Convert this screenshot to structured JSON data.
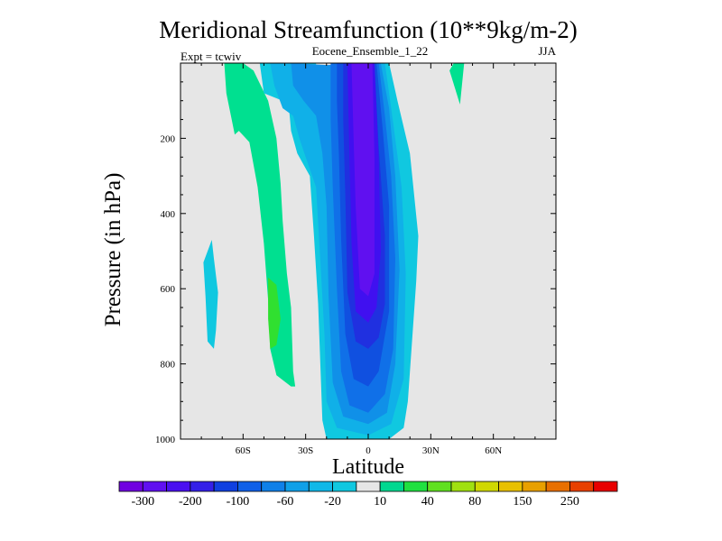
{
  "chart_data": {
    "type": "heatmap",
    "subtype": "filled-contour",
    "title": "Meridional Streamfunction (10**9kg/m-2)",
    "subtitle_center": "Eocene_Ensemble_1_22",
    "subtitle_left": "Expt = tcwiv",
    "subtitle_right": "JJA",
    "xlabel": "Latitude",
    "ylabel": "Pressure (in hPa)",
    "xlim": [
      -90,
      90
    ],
    "ylim": [
      1000,
      0
    ],
    "x_ticks": [
      {
        "value": -60,
        "label": "60S"
      },
      {
        "value": -30,
        "label": "30S"
      },
      {
        "value": 0,
        "label": "0"
      },
      {
        "value": 30,
        "label": "30N"
      },
      {
        "value": 60,
        "label": "60N"
      }
    ],
    "y_ticks": [
      {
        "value": 200,
        "label": "200"
      },
      {
        "value": 400,
        "label": "400"
      },
      {
        "value": 600,
        "label": "600"
      },
      {
        "value": 800,
        "label": "800"
      },
      {
        "value": 1000,
        "label": "1000"
      }
    ],
    "background_color": "#e6e6e6",
    "colorbar": {
      "levels": [
        -350,
        -300,
        -250,
        -200,
        -150,
        -100,
        -80,
        -60,
        -40,
        -20,
        -10,
        10,
        20,
        40,
        60,
        80,
        100,
        150,
        200,
        250,
        300,
        350
      ],
      "labels": [
        {
          "level": -300,
          "text": "-300"
        },
        {
          "level": -200,
          "text": "-200"
        },
        {
          "level": -100,
          "text": "-100"
        },
        {
          "level": -60,
          "text": "-60"
        },
        {
          "level": -20,
          "text": "-20"
        },
        {
          "level": 10,
          "text": "10"
        },
        {
          "level": 40,
          "text": "40"
        },
        {
          "level": 80,
          "text": "80"
        },
        {
          "level": 150,
          "text": "150"
        },
        {
          "level": 250,
          "text": "250"
        }
      ],
      "colors": [
        "#7000e0",
        "#6010f0",
        "#4a10f0",
        "#3420e8",
        "#1040e0",
        "#1060e8",
        "#1080e8",
        "#10a0e8",
        "#10b8e8",
        "#10c8e0",
        "#e6e6e6",
        "#00d890",
        "#20e040",
        "#60e020",
        "#a0e010",
        "#d0d800",
        "#e8c000",
        "#e8a000",
        "#e87000",
        "#e84000",
        "#e80000"
      ]
    },
    "contours": [
      {
        "level": 10,
        "color": "#00e090",
        "polygon": [
          [
            -69,
            0
          ],
          [
            -60,
            0
          ],
          [
            -55,
            -20
          ],
          [
            -48,
            -100
          ],
          [
            -44,
            -200
          ],
          [
            -42,
            -320
          ],
          [
            -41,
            -420
          ],
          [
            -39,
            -560
          ],
          [
            -37,
            -650
          ],
          [
            -36,
            -820
          ],
          [
            -35,
            -860
          ],
          [
            -37,
            -860
          ],
          [
            -44,
            -830
          ],
          [
            -47,
            -760
          ],
          [
            -48,
            -630
          ],
          [
            -50,
            -480
          ],
          [
            -53,
            -330
          ],
          [
            -57,
            -210
          ],
          [
            -62,
            -180
          ],
          [
            -64,
            -190
          ],
          [
            -68,
            -80
          ]
        ]
      },
      {
        "level": 40,
        "color": "#30e030",
        "polygon": [
          [
            -48,
            -570
          ],
          [
            -44,
            -590
          ],
          [
            -42,
            -680
          ],
          [
            -44,
            -750
          ],
          [
            -47,
            -760
          ],
          [
            -48,
            -680
          ]
        ]
      },
      {
        "level": 10,
        "color": "#00e090",
        "polygon": [
          [
            39,
            -20
          ],
          [
            41,
            0
          ],
          [
            46,
            0
          ],
          [
            44,
            -110
          ]
        ]
      },
      {
        "level": 10,
        "color": "#00e090",
        "polygon": [
          [
            2,
            -70
          ],
          [
            3,
            -20
          ],
          [
            4,
            -60
          ]
        ]
      },
      {
        "level": -20,
        "color": "#10c8e0",
        "polygon": [
          [
            -52,
            0
          ],
          [
            -25,
            0
          ],
          [
            -25,
            -20
          ],
          [
            -15,
            0
          ],
          [
            10,
            0
          ],
          [
            14,
            -100
          ],
          [
            20,
            -240
          ],
          [
            24,
            -460
          ],
          [
            23,
            -580
          ],
          [
            19,
            -900
          ],
          [
            17,
            -970
          ],
          [
            10,
            -1000
          ],
          [
            -20,
            -1000
          ],
          [
            -22,
            -950
          ],
          [
            -24,
            -640
          ],
          [
            -26,
            -460
          ],
          [
            -28,
            -300
          ],
          [
            -34,
            -240
          ],
          [
            -37,
            -180
          ],
          [
            -38,
            -120
          ],
          [
            -41,
            -100
          ],
          [
            -50,
            -80
          ]
        ]
      },
      {
        "level": -20,
        "color": "#10c8e0",
        "polygon": [
          [
            -79,
            -530
          ],
          [
            -78,
            -620
          ],
          [
            -77,
            -740
          ],
          [
            -74,
            -760
          ],
          [
            -73,
            -710
          ],
          [
            -72,
            -610
          ],
          [
            -74,
            -520
          ],
          [
            -75,
            -470
          ]
        ]
      },
      {
        "level": -40,
        "color": "#10b0e8",
        "polygon": [
          [
            -47,
            0
          ],
          [
            -35,
            0
          ],
          [
            -29,
            -20
          ],
          [
            -25,
            -40
          ],
          [
            -22,
            -10
          ],
          [
            -14,
            -5
          ],
          [
            8,
            0
          ],
          [
            12,
            -160
          ],
          [
            16,
            -330
          ],
          [
            18,
            -560
          ],
          [
            17,
            -840
          ],
          [
            11,
            -960
          ],
          [
            0,
            -990
          ],
          [
            -15,
            -970
          ],
          [
            -20,
            -900
          ],
          [
            -21,
            -720
          ],
          [
            -23,
            -520
          ],
          [
            -25,
            -330
          ],
          [
            -30,
            -250
          ],
          [
            -33,
            -200
          ],
          [
            -36,
            -140
          ],
          [
            -41,
            -120
          ],
          [
            -45,
            -60
          ]
        ]
      },
      {
        "level": -60,
        "color": "#1090e8",
        "polygon": [
          [
            -37,
            0
          ],
          [
            -20,
            -5
          ],
          [
            6,
            0
          ],
          [
            10,
            -120
          ],
          [
            13,
            -300
          ],
          [
            15,
            -550
          ],
          [
            13,
            -800
          ],
          [
            9,
            -930
          ],
          [
            0,
            -960
          ],
          [
            -12,
            -940
          ],
          [
            -17,
            -850
          ],
          [
            -19,
            -620
          ],
          [
            -20,
            -380
          ],
          [
            -22,
            -240
          ],
          [
            -25,
            -140
          ],
          [
            -31,
            -100
          ],
          [
            -36,
            -60
          ]
        ]
      },
      {
        "level": -80,
        "color": "#1070e8",
        "polygon": [
          [
            -18,
            0
          ],
          [
            5,
            0
          ],
          [
            8,
            -140
          ],
          [
            11,
            -300
          ],
          [
            13,
            -520
          ],
          [
            12,
            -760
          ],
          [
            8,
            -880
          ],
          [
            0,
            -930
          ],
          [
            -9,
            -910
          ],
          [
            -13,
            -820
          ],
          [
            -15,
            -600
          ],
          [
            -17,
            -330
          ],
          [
            -18,
            -150
          ]
        ]
      },
      {
        "level": -100,
        "color": "#1050e0",
        "polygon": [
          [
            -15,
            0
          ],
          [
            4,
            0
          ],
          [
            7,
            -180
          ],
          [
            10,
            -380
          ],
          [
            10,
            -660
          ],
          [
            5,
            -820
          ],
          [
            0,
            -860
          ],
          [
            -7,
            -840
          ],
          [
            -11,
            -720
          ],
          [
            -13,
            -470
          ],
          [
            -14,
            -250
          ],
          [
            -15,
            -100
          ]
        ]
      },
      {
        "level": -150,
        "color": "#2030e0",
        "polygon": [
          [
            -12,
            0
          ],
          [
            3,
            0
          ],
          [
            5,
            -220
          ],
          [
            8,
            -460
          ],
          [
            8,
            -640
          ],
          [
            5,
            -730
          ],
          [
            0,
            -760
          ],
          [
            -6,
            -740
          ],
          [
            -10,
            -610
          ],
          [
            -11,
            -350
          ],
          [
            -12,
            -150
          ]
        ]
      },
      {
        "level": -200,
        "color": "#4010f0",
        "polygon": [
          [
            -10,
            0
          ],
          [
            3,
            0
          ],
          [
            5,
            -250
          ],
          [
            6,
            -500
          ],
          [
            4,
            -650
          ],
          [
            0,
            -690
          ],
          [
            -6,
            -660
          ],
          [
            -8,
            -480
          ],
          [
            -9,
            -250
          ]
        ]
      },
      {
        "level": -250,
        "color": "#6010f0",
        "polygon": [
          [
            -8,
            0
          ],
          [
            2,
            0
          ],
          [
            3,
            -250
          ],
          [
            3,
            -560
          ],
          [
            0,
            -620
          ],
          [
            -4,
            -600
          ],
          [
            -6,
            -380
          ],
          [
            -7,
            -200
          ]
        ]
      }
    ]
  }
}
